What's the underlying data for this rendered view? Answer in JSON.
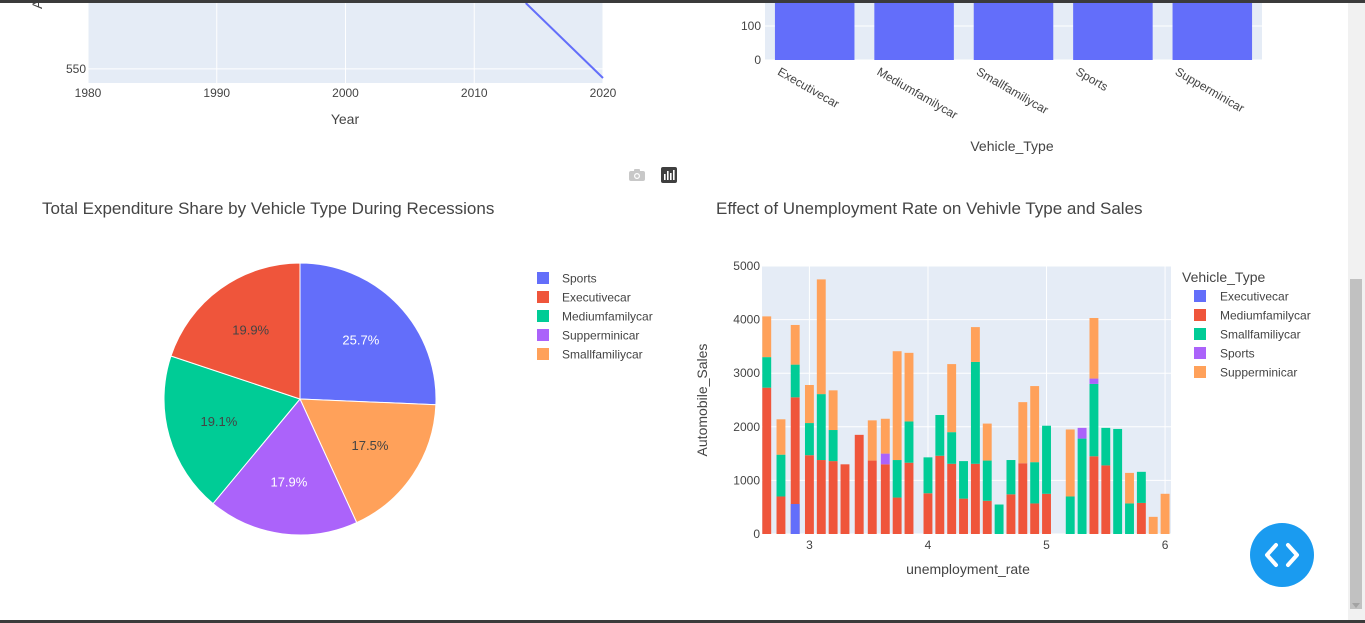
{
  "line_chart": {
    "type": "line",
    "xlabel": "Year",
    "x_ticks": [
      "1980",
      "1990",
      "2000",
      "2010",
      "2020"
    ],
    "y_ticks": [
      "550"
    ],
    "xlim": [
      1980,
      2020
    ],
    "ylim": [
      519,
      694
    ],
    "series": [
      {
        "x": [
          2014,
          2020
        ],
        "y": [
          694,
          530
        ]
      }
    ],
    "color": "#636efa"
  },
  "bar_chart": {
    "type": "bar",
    "xlabel": "Vehicle_Type",
    "categories": [
      "Executivecar",
      "Mediumfamilycar",
      "Smallfamiliycar",
      "Sports",
      "Supperminicar"
    ],
    "y_ticks": [
      "0",
      "100"
    ],
    "ylim": [
      0,
      175
    ],
    "color": "#636efa"
  },
  "pie_chart": {
    "type": "pie",
    "title": "Total Expenditure Share by Vehicle Type During Recessions",
    "slices": [
      {
        "label": "Sports",
        "value": 25.7,
        "text": "25.7%",
        "color": "#636efa"
      },
      {
        "label": "Smallfamiliycar",
        "value": 17.5,
        "text": "17.5%",
        "color": "#ffa15a"
      },
      {
        "label": "Supperminicar",
        "value": 17.9,
        "text": "17.9%",
        "color": "#ab63fa"
      },
      {
        "label": "Mediumfamilycar",
        "value": 19.1,
        "text": "19.1%",
        "color": "#00cc96"
      },
      {
        "label": "Executivecar",
        "value": 19.9,
        "text": "19.9%",
        "color": "#ef553b"
      }
    ],
    "legend": [
      {
        "label": "Sports",
        "color": "#636efa"
      },
      {
        "label": "Executivecar",
        "color": "#ef553b"
      },
      {
        "label": "Mediumfamilycar",
        "color": "#00cc96"
      },
      {
        "label": "Supperminicar",
        "color": "#ab63fa"
      },
      {
        "label": "Smallfamiliycar",
        "color": "#ffa15a"
      }
    ]
  },
  "stacked_chart": {
    "type": "bar",
    "title": "Effect of Unemployment Rate on Vehivle Type and Sales",
    "xlabel": "unemployment_rate",
    "ylabel": "Automobile_Sales",
    "legend_title": "Vehicle_Type",
    "x_ticks": [
      "3",
      "4",
      "5",
      "6"
    ],
    "y_ticks": [
      "0",
      "1000",
      "2000",
      "3000",
      "4000",
      "5000"
    ],
    "xlim": [
      2.6,
      6.05
    ],
    "ylim": [
      0,
      5000
    ],
    "bar_width": 0.075,
    "legend": [
      {
        "label": "Executivecar",
        "color": "#636efa"
      },
      {
        "label": "Mediumfamilycar",
        "color": "#ef553b"
      },
      {
        "label": "Smallfamiliycar",
        "color": "#00cc96"
      },
      {
        "label": "Sports",
        "color": "#ab63fa"
      },
      {
        "label": "Supperminicar",
        "color": "#ffa15a"
      }
    ],
    "bars": [
      {
        "x": 2.64,
        "segments": [
          {
            "type": "Mediumfamilycar",
            "value": 2730
          },
          {
            "type": "Smallfamiliycar",
            "value": 570
          },
          {
            "type": "Supperminicar",
            "value": 760
          }
        ]
      },
      {
        "x": 2.76,
        "segments": [
          {
            "type": "Mediumfamilycar",
            "value": 700
          },
          {
            "type": "Smallfamiliycar",
            "value": 780
          },
          {
            "type": "Supperminicar",
            "value": 660
          }
        ]
      },
      {
        "x": 2.88,
        "segments": [
          {
            "type": "Mediumfamilycar",
            "value": 2550
          },
          {
            "type": "Smallfamiliycar",
            "value": 610
          },
          {
            "type": "Supperminicar",
            "value": 740
          }
        ]
      },
      {
        "x": 2.88,
        "segments": [
          {
            "type": "Executivecar",
            "value": 560
          }
        ]
      },
      {
        "x": 3.0,
        "segments": [
          {
            "type": "Mediumfamilycar",
            "value": 1470
          },
          {
            "type": "Smallfamiliycar",
            "value": 600
          },
          {
            "type": "Supperminicar",
            "value": 710
          }
        ]
      },
      {
        "x": 3.1,
        "segments": [
          {
            "type": "Mediumfamilycar",
            "value": 1380
          },
          {
            "type": "Smallfamiliycar",
            "value": 1230
          },
          {
            "type": "Supperminicar",
            "value": 2140
          }
        ]
      },
      {
        "x": 3.2,
        "segments": [
          {
            "type": "Mediumfamilycar",
            "value": 1360
          },
          {
            "type": "Smallfamiliycar",
            "value": 580
          },
          {
            "type": "Supperminicar",
            "value": 740
          }
        ]
      },
      {
        "x": 3.3,
        "segments": [
          {
            "type": "Mediumfamilycar",
            "value": 1300
          }
        ]
      },
      {
        "x": 3.42,
        "segments": [
          {
            "type": "Mediumfamilycar",
            "value": 1850
          }
        ]
      },
      {
        "x": 3.53,
        "segments": [
          {
            "type": "Mediumfamilycar",
            "value": 1370
          },
          {
            "type": "Supperminicar",
            "value": 750
          }
        ]
      },
      {
        "x": 3.64,
        "segments": [
          {
            "type": "Mediumfamilycar",
            "value": 1300
          },
          {
            "type": "Sports",
            "value": 200
          },
          {
            "type": "Supperminicar",
            "value": 650
          }
        ]
      },
      {
        "x": 3.74,
        "segments": [
          {
            "type": "Mediumfamilycar",
            "value": 680
          },
          {
            "type": "Smallfamiliycar",
            "value": 700
          },
          {
            "type": "Supperminicar",
            "value": 2030
          }
        ]
      },
      {
        "x": 3.84,
        "segments": [
          {
            "type": "Mediumfamilycar",
            "value": 1330
          },
          {
            "type": "Smallfamiliycar",
            "value": 770
          },
          {
            "type": "Supperminicar",
            "value": 1280
          }
        ]
      },
      {
        "x": 4.0,
        "segments": [
          {
            "type": "Mediumfamilycar",
            "value": 760
          },
          {
            "type": "Smallfamiliycar",
            "value": 670
          }
        ]
      },
      {
        "x": 4.1,
        "segments": [
          {
            "type": "Mediumfamilycar",
            "value": 1460
          },
          {
            "type": "Smallfamiliycar",
            "value": 760
          }
        ]
      },
      {
        "x": 4.2,
        "segments": [
          {
            "type": "Mediumfamilycar",
            "value": 1310
          },
          {
            "type": "Smallfamiliycar",
            "value": 590
          },
          {
            "type": "Supperminicar",
            "value": 1270
          }
        ]
      },
      {
        "x": 4.3,
        "segments": [
          {
            "type": "Mediumfamilycar",
            "value": 660
          },
          {
            "type": "Smallfamiliycar",
            "value": 700
          }
        ]
      },
      {
        "x": 4.4,
        "segments": [
          {
            "type": "Mediumfamilycar",
            "value": 1310
          },
          {
            "type": "Smallfamiliycar",
            "value": 1900
          },
          {
            "type": "Supperminicar",
            "value": 650
          }
        ]
      },
      {
        "x": 4.5,
        "segments": [
          {
            "type": "Mediumfamilycar",
            "value": 620
          },
          {
            "type": "Smallfamiliycar",
            "value": 750
          },
          {
            "type": "Supperminicar",
            "value": 690
          }
        ]
      },
      {
        "x": 4.6,
        "segments": [
          {
            "type": "Smallfamiliycar",
            "value": 550
          }
        ]
      },
      {
        "x": 4.7,
        "segments": [
          {
            "type": "Mediumfamilycar",
            "value": 740
          },
          {
            "type": "Smallfamiliycar",
            "value": 640
          }
        ]
      },
      {
        "x": 4.8,
        "segments": [
          {
            "type": "Mediumfamilycar",
            "value": 1320
          },
          {
            "type": "Supperminicar",
            "value": 1140
          }
        ]
      },
      {
        "x": 4.9,
        "segments": [
          {
            "type": "Mediumfamilycar",
            "value": 570
          },
          {
            "type": "Smallfamiliycar",
            "value": 770
          },
          {
            "type": "Supperminicar",
            "value": 1420
          }
        ]
      },
      {
        "x": 5.0,
        "segments": [
          {
            "type": "Mediumfamilycar",
            "value": 750
          },
          {
            "type": "Smallfamiliycar",
            "value": 1270
          }
        ]
      },
      {
        "x": 5.2,
        "segments": [
          {
            "type": "Smallfamiliycar",
            "value": 700
          },
          {
            "type": "Supperminicar",
            "value": 1250
          }
        ]
      },
      {
        "x": 5.3,
        "segments": [
          {
            "type": "Smallfamiliycar",
            "value": 1780
          },
          {
            "type": "Sports",
            "value": 200
          }
        ]
      },
      {
        "x": 5.4,
        "segments": [
          {
            "type": "Mediumfamilycar",
            "value": 1450
          },
          {
            "type": "Smallfamiliycar",
            "value": 1350
          },
          {
            "type": "Sports",
            "value": 100
          },
          {
            "type": "Supperminicar",
            "value": 1130
          }
        ]
      },
      {
        "x": 5.5,
        "segments": [
          {
            "type": "Mediumfamilycar",
            "value": 1280
          },
          {
            "type": "Smallfamiliycar",
            "value": 700
          }
        ]
      },
      {
        "x": 5.6,
        "segments": [
          {
            "type": "Smallfamiliycar",
            "value": 1960
          }
        ]
      },
      {
        "x": 5.7,
        "segments": [
          {
            "type": "Smallfamiliycar",
            "value": 570
          },
          {
            "type": "Supperminicar",
            "value": 570
          }
        ]
      },
      {
        "x": 5.8,
        "segments": [
          {
            "type": "Mediumfamilycar",
            "value": 580
          },
          {
            "type": "Smallfamiliycar",
            "value": 580
          }
        ]
      },
      {
        "x": 5.9,
        "segments": [
          {
            "type": "Supperminicar",
            "value": 320
          }
        ]
      },
      {
        "x": 6.0,
        "segments": [
          {
            "type": "Supperminicar",
            "value": 750
          }
        ]
      }
    ]
  },
  "colors": {
    "plot_bg": "#e5ecf6",
    "grid": "#ffffff",
    "text": "#444444",
    "fab": "#1a9bf0"
  },
  "icons": {
    "camera": "camera-icon",
    "plotly_logo": "plotly-logo-icon",
    "code_toggle": "code-brackets-icon"
  }
}
